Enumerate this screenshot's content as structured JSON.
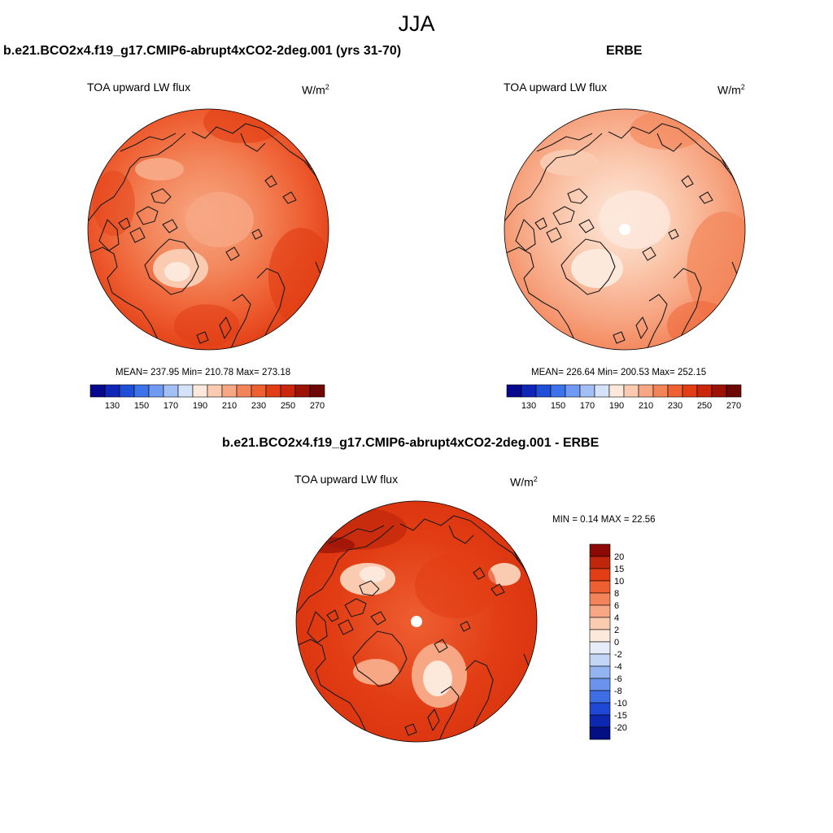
{
  "season": "JJA",
  "panels": {
    "model": {
      "title": "b.e21.BCO2x4.f19_g17.CMIP6-abrupt4xCO2-2deg.001 (yrs 31-70)",
      "variable": "TOA upward LW flux",
      "units": "W/m",
      "units_exp": "2",
      "stats": "MEAN= 237.95  Min= 210.78  Max= 273.18"
    },
    "obs": {
      "title": "ERBE",
      "variable": "TOA upward LW flux",
      "units": "W/m",
      "units_exp": "2",
      "stats": "MEAN= 226.64  Min= 200.53  Max= 252.15"
    },
    "diff": {
      "title": "b.e21.BCO2x4.f19_g17.CMIP6-abrupt4xCO2-2deg.001 - ERBE",
      "variable": "TOA upward LW flux",
      "units": "W/m",
      "units_exp": "2",
      "stats": "MIN =   0.14 MAX =  22.56"
    }
  },
  "colorbars": {
    "field": {
      "labels": [
        "130",
        "150",
        "170",
        "190",
        "210",
        "230",
        "250",
        "270"
      ],
      "colors": [
        "#08088f",
        "#1026b8",
        "#1f4fd8",
        "#3d72ea",
        "#6f9af3",
        "#a3c0f6",
        "#d4e2fa",
        "#fde8dc",
        "#fbcbb1",
        "#f7a784",
        "#f38459",
        "#ee5f32",
        "#e23d14",
        "#c9260b",
        "#9c1306",
        "#6e0805"
      ]
    },
    "diff": {
      "labels": [
        "20",
        "15",
        "10",
        "8",
        "6",
        "4",
        "2",
        "0",
        "-2",
        "-4",
        "-6",
        "-8",
        "-10",
        "-15",
        "-20"
      ],
      "colors": [
        "#8b0a05",
        "#c0260b",
        "#e23d14",
        "#ee5f32",
        "#f38459",
        "#f7a784",
        "#fbcbb1",
        "#fde8dc",
        "#e6edf8",
        "#c3d6f5",
        "#94b4f1",
        "#6a93ec",
        "#3d6ee6",
        "#1f47d6",
        "#0c27b0",
        "#040f83"
      ]
    }
  }
}
